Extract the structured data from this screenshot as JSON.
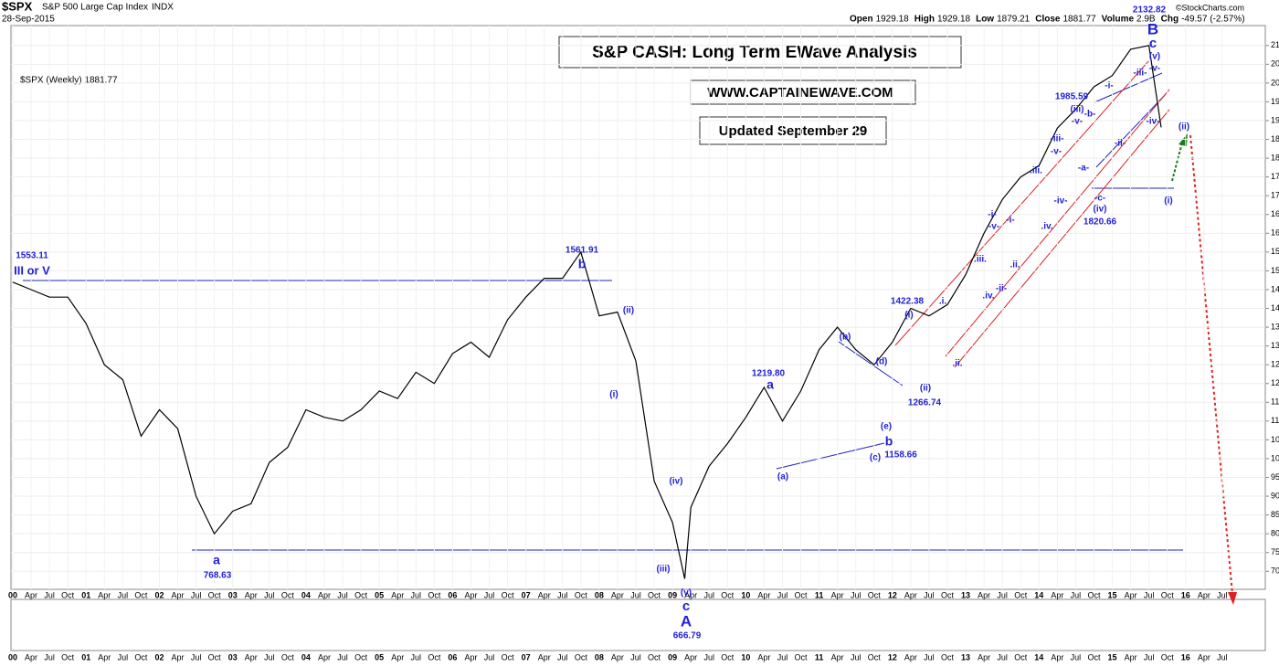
{
  "header": {
    "symbol": "$SPX",
    "name": "S&P 500 Large Cap Index",
    "exchange": "INDX",
    "date": "28-Sep-2015",
    "quote": [
      {
        "label": "Open",
        "value": "1929.18"
      },
      {
        "label": "High",
        "value": "1929.18"
      },
      {
        "label": "Low",
        "value": "1879.21"
      },
      {
        "label": "Close",
        "value": "1881.77"
      },
      {
        "label": "Volume",
        "value": "2.9B"
      },
      {
        "label": "Chg",
        "value": "-49.57 (-2.57%)"
      }
    ],
    "credit": "©StockCharts.com"
  },
  "chart_data": {
    "type": "line",
    "title": "S&P CASH: Long Term EWave Analysis",
    "subtitle": "WWW.CAPTAINEWAVE.COM",
    "note": "Updated September 29",
    "legend": "$SPX (Weekly) 1881.77",
    "series": [
      {
        "name": "$SPX",
        "color": "#000000",
        "x": [
          "2000-01",
          "2000-04",
          "2000-07",
          "2000-10",
          "2001-01",
          "2001-04",
          "2001-07",
          "2001-10",
          "2002-01",
          "2002-04",
          "2002-07",
          "2002-10",
          "2003-01",
          "2003-04",
          "2003-07",
          "2003-10",
          "2004-01",
          "2004-04",
          "2004-07",
          "2004-10",
          "2005-01",
          "2005-04",
          "2005-07",
          "2005-10",
          "2006-01",
          "2006-04",
          "2006-07",
          "2006-10",
          "2007-01",
          "2007-04",
          "2007-07",
          "2007-10",
          "2008-01",
          "2008-04",
          "2008-07",
          "2008-10",
          "2009-01",
          "2009-03",
          "2009-04",
          "2009-07",
          "2009-10",
          "2010-01",
          "2010-04",
          "2010-07",
          "2010-10",
          "2011-01",
          "2011-04",
          "2011-07",
          "2011-10",
          "2012-01",
          "2012-04",
          "2012-07",
          "2012-10",
          "2013-01",
          "2013-04",
          "2013-07",
          "2013-10",
          "2014-01",
          "2014-04",
          "2014-07",
          "2014-10",
          "2015-01",
          "2015-04",
          "2015-07",
          "2015-09"
        ],
        "values": [
          1470,
          1450,
          1430,
          1430,
          1360,
          1250,
          1210,
          1060,
          1130,
          1080,
          900,
          800,
          860,
          880,
          990,
          1030,
          1130,
          1110,
          1100,
          1130,
          1180,
          1160,
          1230,
          1200,
          1280,
          1310,
          1270,
          1370,
          1430,
          1480,
          1480,
          1550,
          1380,
          1390,
          1260,
          940,
          830,
          680,
          870,
          980,
          1040,
          1110,
          1190,
          1100,
          1180,
          1290,
          1350,
          1290,
          1250,
          1310,
          1400,
          1380,
          1410,
          1490,
          1600,
          1690,
          1750,
          1780,
          1880,
          1930,
          1990,
          2020,
          2090,
          2100,
          1882
        ]
      }
    ],
    "xlim": [
      "2000-01",
      "2017-01"
    ],
    "xticks": [
      {
        "value": "2000-01",
        "label": "00"
      },
      {
        "value": "2000-04",
        "label": "Apr"
      },
      {
        "value": "2000-07",
        "label": "Jul"
      },
      {
        "value": "2000-10",
        "label": "Oct"
      },
      {
        "value": "2001-01",
        "label": "01"
      },
      {
        "value": "2001-04",
        "label": "Apr"
      },
      {
        "value": "2001-07",
        "label": "Jul"
      },
      {
        "value": "2001-10",
        "label": "Oct"
      },
      {
        "value": "2002-01",
        "label": "02"
      },
      {
        "value": "2002-04",
        "label": "Apr"
      },
      {
        "value": "2002-07",
        "label": "Jul"
      },
      {
        "value": "2002-10",
        "label": "Oct"
      },
      {
        "value": "2003-01",
        "label": "03"
      },
      {
        "value": "2003-04",
        "label": "Apr"
      },
      {
        "value": "2003-07",
        "label": "Jul"
      },
      {
        "value": "2003-10",
        "label": "Oct"
      },
      {
        "value": "2004-01",
        "label": "04"
      },
      {
        "value": "2004-04",
        "label": "Apr"
      },
      {
        "value": "2004-07",
        "label": "Jul"
      },
      {
        "value": "2004-10",
        "label": "Oct"
      },
      {
        "value": "2005-01",
        "label": "05"
      },
      {
        "value": "2005-04",
        "label": "Apr"
      },
      {
        "value": "2005-07",
        "label": "Jul"
      },
      {
        "value": "2005-10",
        "label": "Oct"
      },
      {
        "value": "2006-01",
        "label": "06"
      },
      {
        "value": "2006-04",
        "label": "Apr"
      },
      {
        "value": "2006-07",
        "label": "Jul"
      },
      {
        "value": "2006-10",
        "label": "Oct"
      },
      {
        "value": "2007-01",
        "label": "07"
      },
      {
        "value": "2007-04",
        "label": "Apr"
      },
      {
        "value": "2007-07",
        "label": "Jul"
      },
      {
        "value": "2007-10",
        "label": "Oct"
      },
      {
        "value": "2008-01",
        "label": "08"
      },
      {
        "value": "2008-04",
        "label": "Apr"
      },
      {
        "value": "2008-07",
        "label": "Jul"
      },
      {
        "value": "2008-10",
        "label": "Oct"
      },
      {
        "value": "2009-01",
        "label": "09"
      },
      {
        "value": "2009-04",
        "label": "Apr"
      },
      {
        "value": "2009-07",
        "label": "Jul"
      },
      {
        "value": "2009-10",
        "label": "Oct"
      },
      {
        "value": "2010-01",
        "label": "10"
      },
      {
        "value": "2010-04",
        "label": "Apr"
      },
      {
        "value": "2010-07",
        "label": "Jul"
      },
      {
        "value": "2010-10",
        "label": "Oct"
      },
      {
        "value": "2011-01",
        "label": "11"
      },
      {
        "value": "2011-04",
        "label": "Apr"
      },
      {
        "value": "2011-07",
        "label": "Jul"
      },
      {
        "value": "2011-10",
        "label": "Oct"
      },
      {
        "value": "2012-01",
        "label": "12"
      },
      {
        "value": "2012-04",
        "label": "Apr"
      },
      {
        "value": "2012-07",
        "label": "Jul"
      },
      {
        "value": "2012-10",
        "label": "Oct"
      },
      {
        "value": "2013-01",
        "label": "13"
      },
      {
        "value": "2013-04",
        "label": "Apr"
      },
      {
        "value": "2013-07",
        "label": "Jul"
      },
      {
        "value": "2013-10",
        "label": "Oct"
      },
      {
        "value": "2014-01",
        "label": "14"
      },
      {
        "value": "2014-04",
        "label": "Apr"
      },
      {
        "value": "2014-07",
        "label": "Jul"
      },
      {
        "value": "2014-10",
        "label": "Oct"
      },
      {
        "value": "2015-01",
        "label": "15"
      },
      {
        "value": "2015-04",
        "label": "Apr"
      },
      {
        "value": "2015-07",
        "label": "Jul"
      },
      {
        "value": "2015-10",
        "label": "Oct"
      },
      {
        "value": "2016-01",
        "label": "16"
      },
      {
        "value": "2016-04",
        "label": "Apr"
      },
      {
        "value": "2016-07",
        "label": "Jul"
      }
    ],
    "ylim": [
      652,
      2153
    ],
    "yticks": [
      700,
      750,
      800,
      850,
      900,
      950,
      1000,
      1050,
      1100,
      1150,
      1200,
      1250,
      1300,
      1350,
      1400,
      1450,
      1500,
      1550,
      1600,
      1650,
      1700,
      1750,
      1800,
      1850,
      1900,
      1950,
      2000,
      2050,
      2100
    ],
    "grid": true,
    "annotations": [
      "1553.11",
      "III or V",
      "1561.91",
      "b",
      "a",
      "768.63",
      "(iii)",
      "(iv)",
      "(i)",
      "(ii)",
      "1219.80",
      "a",
      "(a)",
      "(b)",
      "(d)",
      "(e)",
      "b",
      "(c)",
      "1158.66",
      "1422.38",
      "(i)",
      "(ii)",
      "1266.74",
      ".i.",
      ".ii.",
      ".iii.",
      ".iv.",
      "-i-",
      "-v-",
      "-i-",
      ".ii.",
      "-ii-",
      ".iii.",
      ".iv.",
      "-iii-",
      "-v-",
      "-iv-",
      "1985.59",
      "(iii)",
      "-v-",
      "-b-",
      "-a-",
      "-c-",
      "(iv)",
      "1820.66",
      "-i-",
      "-ii-",
      "-iii-",
      "-v-",
      "(v)",
      "c",
      "B",
      "2132.82",
      "-iv-",
      "(ii)",
      "(i)",
      "(v)",
      "c",
      "A",
      "666.79"
    ]
  }
}
